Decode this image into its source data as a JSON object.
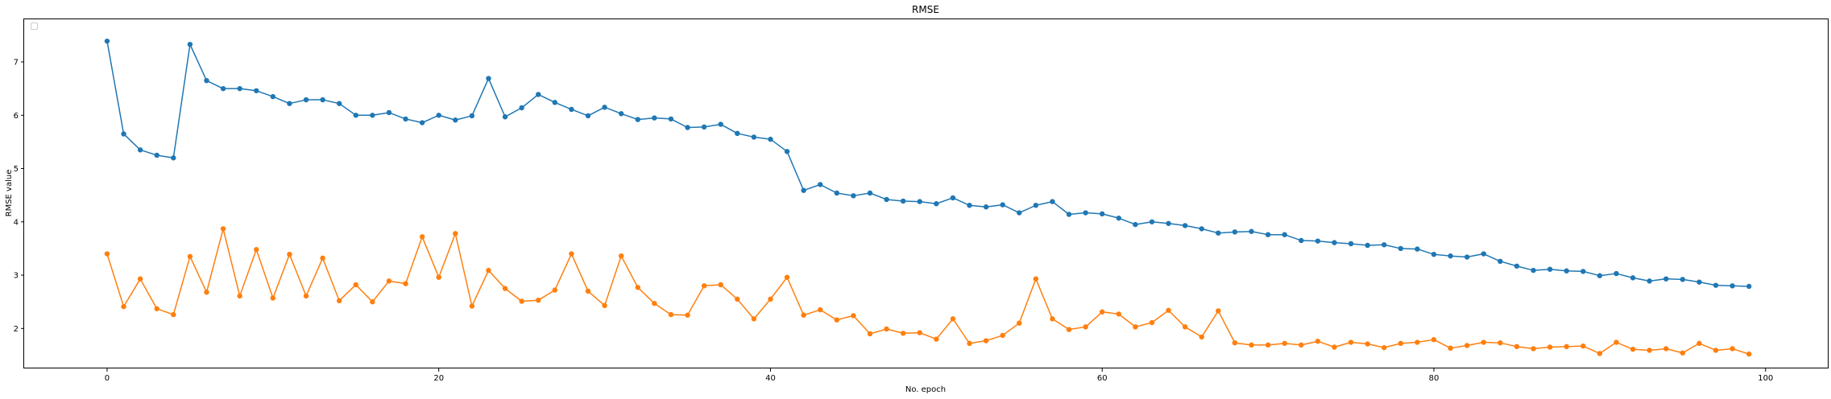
{
  "chart_data": {
    "type": "line",
    "title": "RMSE",
    "xlabel": "No. epoch",
    "ylabel": "RMSE value",
    "xlim": [
      -5,
      103.8
    ],
    "ylim": [
      1.25,
      7.8
    ],
    "xticks": [
      0,
      20,
      40,
      60,
      80,
      100
    ],
    "yticks": [
      2,
      3,
      4,
      5,
      6,
      7
    ],
    "grid": false,
    "legend": "top-left (empty)",
    "markers": true,
    "x": [
      0,
      1,
      2,
      3,
      4,
      5,
      6,
      7,
      8,
      9,
      10,
      11,
      12,
      13,
      14,
      15,
      16,
      17,
      18,
      19,
      20,
      21,
      22,
      23,
      24,
      25,
      26,
      27,
      28,
      29,
      30,
      31,
      32,
      33,
      34,
      35,
      36,
      37,
      38,
      39,
      40,
      41,
      42,
      43,
      44,
      45,
      46,
      47,
      48,
      49,
      50,
      51,
      52,
      53,
      54,
      55,
      56,
      57,
      58,
      59,
      60,
      61,
      62,
      63,
      64,
      65,
      66,
      67,
      68,
      69,
      70,
      71,
      72,
      73,
      74,
      75,
      76,
      77,
      78,
      79,
      80,
      81,
      82,
      83,
      84,
      85,
      86,
      87,
      88,
      89,
      90,
      91,
      92,
      93,
      94,
      95,
      96,
      97,
      98,
      99
    ],
    "series": [
      {
        "color": "#1f77b4",
        "values": [
          7.39,
          5.65,
          5.35,
          5.25,
          5.2,
          7.33,
          6.65,
          6.5,
          6.5,
          6.46,
          6.35,
          6.22,
          6.29,
          6.29,
          6.22,
          6.0,
          6.0,
          6.05,
          5.93,
          5.86,
          6.0,
          5.91,
          5.99,
          6.69,
          5.97,
          6.14,
          6.39,
          6.24,
          6.11,
          5.99,
          6.15,
          6.03,
          5.92,
          5.95,
          5.93,
          5.77,
          5.78,
          5.83,
          5.66,
          5.59,
          5.55,
          5.32,
          4.59,
          4.7,
          4.54,
          4.49,
          4.54,
          4.42,
          4.39,
          4.38,
          4.34,
          4.45,
          4.31,
          4.28,
          4.32,
          4.17,
          4.31,
          4.38,
          4.14,
          4.17,
          4.15,
          4.07,
          3.95,
          4.0,
          3.97,
          3.93,
          3.87,
          3.79,
          3.81,
          3.82,
          3.76,
          3.76,
          3.65,
          3.64,
          3.61,
          3.59,
          3.56,
          3.57,
          3.5,
          3.49,
          3.39,
          3.36,
          3.34,
          3.4,
          3.26,
          3.17,
          3.09,
          3.11,
          3.08,
          3.07,
          2.99,
          3.03,
          2.95,
          2.89,
          2.93,
          2.92,
          2.87,
          2.81,
          2.8,
          2.79
        ]
      },
      {
        "color": "#ff7f0e",
        "values": [
          3.4,
          2.41,
          2.93,
          2.37,
          2.26,
          3.35,
          2.68,
          3.87,
          2.61,
          3.48,
          2.57,
          3.39,
          2.61,
          3.32,
          2.52,
          2.82,
          2.5,
          2.89,
          2.84,
          3.72,
          2.96,
          3.78,
          2.42,
          3.09,
          2.75,
          2.51,
          2.53,
          2.72,
          3.4,
          2.7,
          2.43,
          3.36,
          2.77,
          2.47,
          2.26,
          2.25,
          2.8,
          2.82,
          2.55,
          2.18,
          2.55,
          2.96,
          2.25,
          2.35,
          2.16,
          2.24,
          1.9,
          1.99,
          1.91,
          1.92,
          1.8,
          2.18,
          1.72,
          1.77,
          1.87,
          2.1,
          2.93,
          2.18,
          1.98,
          2.03,
          2.31,
          2.27,
          2.03,
          2.11,
          2.34,
          2.03,
          1.84,
          2.33,
          1.73,
          1.69,
          1.69,
          1.72,
          1.69,
          1.76,
          1.65,
          1.74,
          1.71,
          1.64,
          1.72,
          1.74,
          1.79,
          1.63,
          1.68,
          1.74,
          1.73,
          1.66,
          1.62,
          1.65,
          1.66,
          1.67,
          1.53,
          1.74,
          1.61,
          1.59,
          1.62,
          1.54,
          1.72,
          1.59,
          1.62,
          1.52
        ]
      }
    ]
  }
}
